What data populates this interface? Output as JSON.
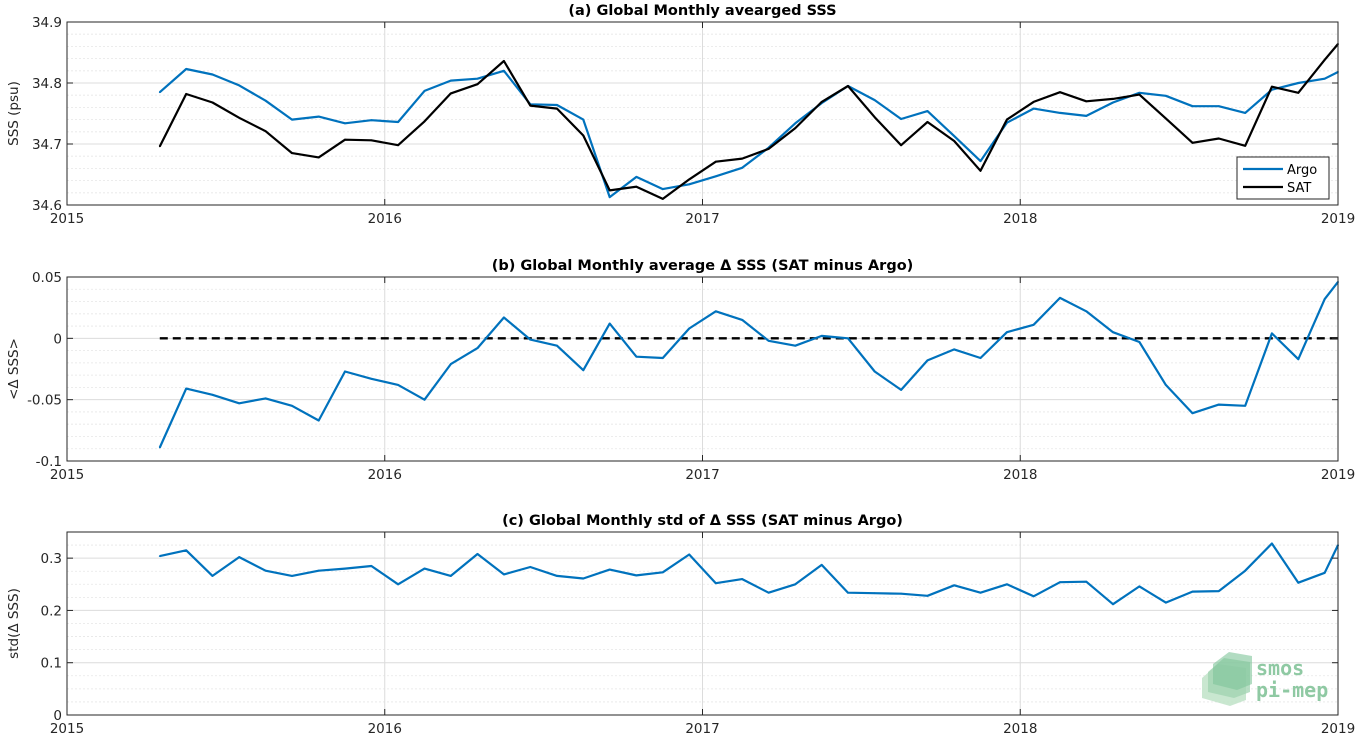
{
  "chart_data": [
    {
      "type": "line",
      "title": "(a) Global Monthly avearged SSS",
      "xlabel": "",
      "ylabel": "SSS (psu)",
      "xlim": [
        2015,
        2019
      ],
      "ylim": [
        34.6,
        34.9
      ],
      "xticks": [
        2015,
        2016,
        2017,
        2018,
        2019
      ],
      "xtick_labels": [
        "2015",
        "2016",
        "2017",
        "2018",
        "2019"
      ],
      "yticks": [
        34.6,
        34.7,
        34.8,
        34.9
      ],
      "ytick_labels": [
        "34.6",
        "34.7",
        "34.8",
        "34.9"
      ],
      "grid": true,
      "legend_position": "bottom-right",
      "series": [
        {
          "name": "Argo",
          "color": "#0072bd",
          "x": [
            2015.292,
            2015.375,
            2015.458,
            2015.542,
            2015.625,
            2015.708,
            2015.792,
            2015.875,
            2015.958,
            2016.042,
            2016.125,
            2016.208,
            2016.292,
            2016.375,
            2016.458,
            2016.542,
            2016.625,
            2016.708,
            2016.792,
            2016.875,
            2016.958,
            2017.042,
            2017.125,
            2017.208,
            2017.292,
            2017.375,
            2017.458,
            2017.542,
            2017.625,
            2017.708,
            2017.792,
            2017.875,
            2017.958,
            2018.042,
            2018.125,
            2018.208,
            2018.292,
            2018.375,
            2018.458,
            2018.542,
            2018.625,
            2018.708,
            2018.792,
            2018.875,
            2018.958,
            2019.0
          ],
          "y": [
            34.785,
            34.823,
            34.814,
            34.796,
            34.771,
            34.74,
            34.745,
            34.734,
            34.739,
            34.736,
            34.787,
            34.804,
            34.807,
            34.82,
            34.765,
            34.764,
            34.74,
            34.613,
            34.646,
            34.626,
            34.634,
            34.647,
            34.661,
            34.694,
            34.734,
            34.767,
            34.795,
            34.772,
            34.741,
            34.754,
            34.713,
            34.672,
            34.735,
            34.758,
            34.751,
            34.746,
            34.768,
            34.784,
            34.779,
            34.762,
            34.762,
            34.751,
            34.789,
            34.8,
            34.807,
            34.818
          ]
        },
        {
          "name": "SAT",
          "color": "#000000",
          "x": [
            2015.292,
            2015.375,
            2015.458,
            2015.542,
            2015.625,
            2015.708,
            2015.792,
            2015.875,
            2015.958,
            2016.042,
            2016.125,
            2016.208,
            2016.292,
            2016.375,
            2016.458,
            2016.542,
            2016.625,
            2016.708,
            2016.792,
            2016.875,
            2016.958,
            2017.042,
            2017.125,
            2017.208,
            2017.292,
            2017.375,
            2017.458,
            2017.542,
            2017.625,
            2017.708,
            2017.792,
            2017.875,
            2017.958,
            2018.042,
            2018.125,
            2018.208,
            2018.292,
            2018.375,
            2018.458,
            2018.542,
            2018.625,
            2018.708,
            2018.792,
            2018.875,
            2018.958,
            2019.0
          ],
          "y": [
            34.696,
            34.782,
            34.768,
            34.743,
            34.721,
            34.685,
            34.678,
            34.707,
            34.706,
            34.698,
            34.737,
            34.783,
            34.798,
            34.836,
            34.763,
            34.758,
            34.714,
            34.624,
            34.63,
            34.61,
            34.642,
            34.671,
            34.676,
            34.692,
            34.726,
            34.769,
            34.795,
            34.744,
            34.698,
            34.736,
            34.705,
            34.656,
            34.74,
            34.769,
            34.785,
            34.77,
            34.774,
            34.781,
            34.742,
            34.702,
            34.709,
            34.697,
            34.794,
            34.784,
            34.838,
            34.864
          ]
        }
      ]
    },
    {
      "type": "line",
      "title": "(b) Global Monthly average Δ SSS (SAT minus Argo)",
      "xlabel": "",
      "ylabel": "<Δ SSS>",
      "xlim": [
        2015,
        2019
      ],
      "ylim": [
        -0.1,
        0.05
      ],
      "xticks": [
        2015,
        2016,
        2017,
        2018,
        2019
      ],
      "xtick_labels": [
        "2015",
        "2016",
        "2017",
        "2018",
        "2019"
      ],
      "yticks": [
        -0.1,
        -0.05,
        0,
        0.05
      ],
      "ytick_labels": [
        "-0.1",
        "-0.05",
        "0",
        "0.05"
      ],
      "grid": true,
      "reference_line": {
        "y": 0,
        "x_from": 2015.292,
        "x_to": 2019.0,
        "style": "dashed",
        "color": "#000000"
      },
      "series": [
        {
          "color": "#0072bd",
          "x": [
            2015.292,
            2015.375,
            2015.458,
            2015.542,
            2015.625,
            2015.708,
            2015.792,
            2015.875,
            2015.958,
            2016.042,
            2016.125,
            2016.208,
            2016.292,
            2016.375,
            2016.458,
            2016.542,
            2016.625,
            2016.708,
            2016.792,
            2016.875,
            2016.958,
            2017.042,
            2017.125,
            2017.208,
            2017.292,
            2017.375,
            2017.458,
            2017.542,
            2017.625,
            2017.708,
            2017.792,
            2017.875,
            2017.958,
            2018.042,
            2018.125,
            2018.208,
            2018.292,
            2018.375,
            2018.458,
            2018.542,
            2018.625,
            2018.708,
            2018.792,
            2018.875,
            2018.958,
            2019.0
          ],
          "y": [
            -0.089,
            -0.041,
            -0.046,
            -0.053,
            -0.049,
            -0.055,
            -0.067,
            -0.027,
            -0.033,
            -0.038,
            -0.05,
            -0.021,
            -0.008,
            0.017,
            -0.001,
            -0.006,
            -0.026,
            0.012,
            -0.015,
            -0.016,
            0.008,
            0.022,
            0.015,
            -0.002,
            -0.006,
            0.002,
            0.0,
            -0.027,
            -0.042,
            -0.018,
            -0.009,
            -0.016,
            0.005,
            0.011,
            0.033,
            0.022,
            0.005,
            -0.003,
            -0.038,
            -0.061,
            -0.054,
            -0.055,
            0.004,
            -0.017,
            0.032,
            0.046
          ]
        }
      ]
    },
    {
      "type": "line",
      "title": "(c) Global Monthly std of Δ SSS (SAT minus Argo)",
      "xlabel": "",
      "ylabel": "std(Δ SSS)",
      "xlim": [
        2015,
        2019
      ],
      "ylim": [
        0,
        0.35
      ],
      "xticks": [
        2015,
        2016,
        2017,
        2018,
        2019
      ],
      "xtick_labels": [
        "2015",
        "2016",
        "2017",
        "2018",
        "2019"
      ],
      "yticks": [
        0,
        0.1,
        0.2,
        0.3
      ],
      "ytick_labels": [
        "0",
        "0.1",
        "0.2",
        "0.3"
      ],
      "grid": true,
      "series": [
        {
          "color": "#0072bd",
          "x": [
            2015.292,
            2015.375,
            2015.458,
            2015.542,
            2015.625,
            2015.708,
            2015.792,
            2015.875,
            2015.958,
            2016.042,
            2016.125,
            2016.208,
            2016.292,
            2016.375,
            2016.458,
            2016.542,
            2016.625,
            2016.708,
            2016.792,
            2016.875,
            2016.958,
            2017.042,
            2017.125,
            2017.208,
            2017.292,
            2017.375,
            2017.458,
            2017.542,
            2017.625,
            2017.708,
            2017.792,
            2017.875,
            2017.958,
            2018.042,
            2018.125,
            2018.208,
            2018.292,
            2018.375,
            2018.458,
            2018.542,
            2018.625,
            2018.708,
            2018.792,
            2018.875,
            2018.958,
            2019.0
          ],
          "y": [
            0.304,
            0.315,
            0.266,
            0.302,
            0.276,
            0.266,
            0.276,
            0.28,
            0.285,
            0.25,
            0.28,
            0.266,
            0.308,
            0.269,
            0.283,
            0.266,
            0.261,
            0.278,
            0.267,
            0.273,
            0.307,
            0.252,
            0.26,
            0.234,
            0.25,
            0.287,
            0.234,
            0.233,
            0.232,
            0.228,
            0.248,
            0.234,
            0.25,
            0.227,
            0.254,
            0.255,
            0.212,
            0.246,
            0.215,
            0.236,
            0.237,
            0.276,
            0.328,
            0.253,
            0.272,
            0.325
          ]
        }
      ]
    }
  ],
  "logo": {
    "line1": "smos",
    "line2": "pi-mep",
    "color": "#8fc9a3"
  }
}
